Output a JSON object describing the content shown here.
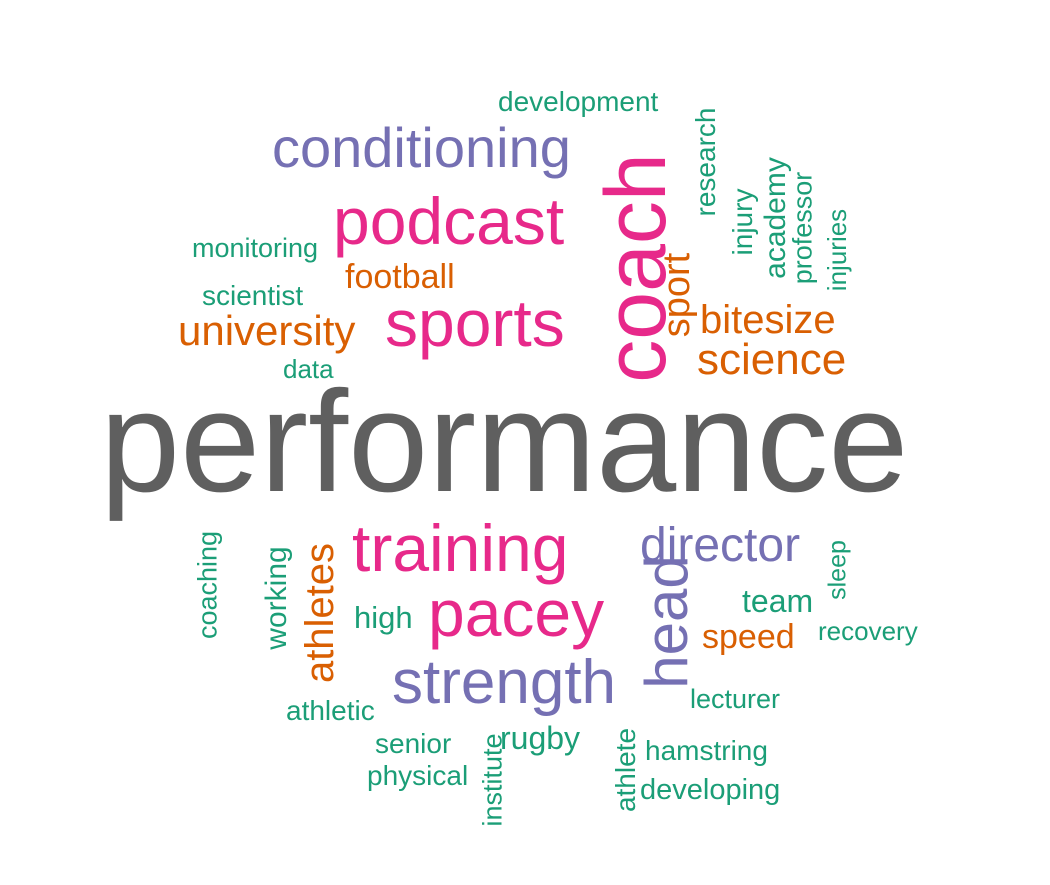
{
  "colors": {
    "gray": "#5f5f5f",
    "purple": "#7570b3",
    "magenta": "#e7298a",
    "orange": "#d95f02",
    "green": "#1b9e77"
  },
  "words": [
    {
      "key": "performance",
      "text": "performance",
      "color": "gray"
    },
    {
      "key": "coach",
      "text": "coach",
      "color": "magenta"
    },
    {
      "key": "sports",
      "text": "sports",
      "color": "magenta"
    },
    {
      "key": "podcast",
      "text": "podcast",
      "color": "magenta"
    },
    {
      "key": "training",
      "text": "training",
      "color": "magenta"
    },
    {
      "key": "pacey",
      "text": "pacey",
      "color": "magenta"
    },
    {
      "key": "conditioning",
      "text": "conditioning",
      "color": "purple"
    },
    {
      "key": "strength",
      "text": "strength",
      "color": "purple"
    },
    {
      "key": "director",
      "text": "director",
      "color": "purple"
    },
    {
      "key": "head",
      "text": "head",
      "color": "purple"
    },
    {
      "key": "university",
      "text": "university",
      "color": "orange"
    },
    {
      "key": "bitesize",
      "text": "bitesize",
      "color": "orange"
    },
    {
      "key": "science",
      "text": "science",
      "color": "orange"
    },
    {
      "key": "football",
      "text": "football",
      "color": "orange"
    },
    {
      "key": "sport",
      "text": "sport",
      "color": "orange"
    },
    {
      "key": "athletes",
      "text": "athletes",
      "color": "orange"
    },
    {
      "key": "speed",
      "text": "speed",
      "color": "orange"
    },
    {
      "key": "development",
      "text": "development",
      "color": "green"
    },
    {
      "key": "monitoring",
      "text": "monitoring",
      "color": "green"
    },
    {
      "key": "scientist",
      "text": "scientist",
      "color": "green"
    },
    {
      "key": "data",
      "text": "data",
      "color": "green"
    },
    {
      "key": "research",
      "text": "research",
      "color": "green"
    },
    {
      "key": "injury",
      "text": "injury",
      "color": "green"
    },
    {
      "key": "academy",
      "text": "academy",
      "color": "green"
    },
    {
      "key": "professor",
      "text": "professor",
      "color": "green"
    },
    {
      "key": "injuries",
      "text": "injuries",
      "color": "green"
    },
    {
      "key": "coaching",
      "text": "coaching",
      "color": "green"
    },
    {
      "key": "working",
      "text": "working",
      "color": "green"
    },
    {
      "key": "high",
      "text": "high",
      "color": "green"
    },
    {
      "key": "team",
      "text": "team",
      "color": "green"
    },
    {
      "key": "sleep",
      "text": "sleep",
      "color": "green"
    },
    {
      "key": "recovery",
      "text": "recovery",
      "color": "green"
    },
    {
      "key": "lecturer",
      "text": "lecturer",
      "color": "green"
    },
    {
      "key": "athletic",
      "text": "athletic",
      "color": "green"
    },
    {
      "key": "senior",
      "text": "senior",
      "color": "green"
    },
    {
      "key": "physical",
      "text": "physical",
      "color": "green"
    },
    {
      "key": "institute",
      "text": "institute",
      "color": "green"
    },
    {
      "key": "rugby",
      "text": "rugby",
      "color": "green"
    },
    {
      "key": "athlete",
      "text": "athlete",
      "color": "green"
    },
    {
      "key": "hamstring",
      "text": "hamstring",
      "color": "green"
    },
    {
      "key": "developing",
      "text": "developing",
      "color": "green"
    }
  ]
}
